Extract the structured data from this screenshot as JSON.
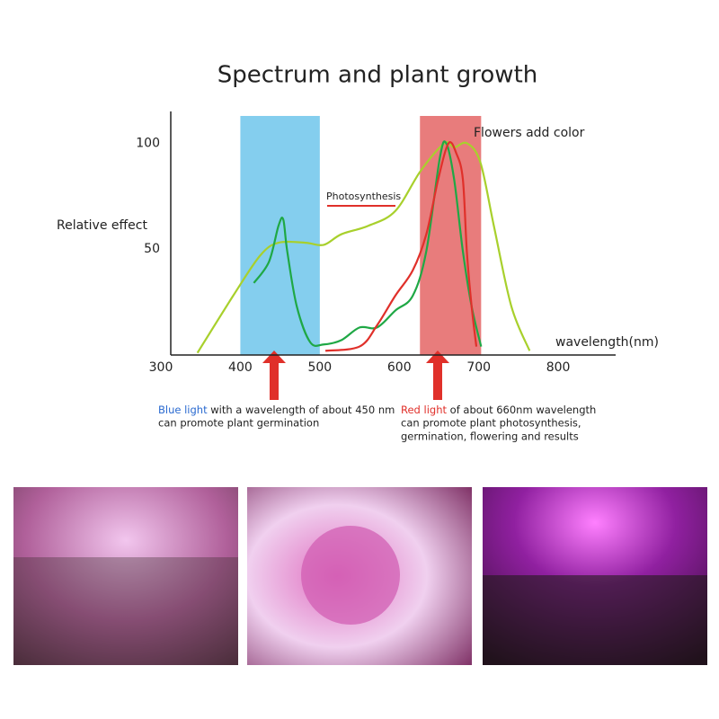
{
  "chart_data": {
    "type": "line",
    "title": "Spectrum and plant growth",
    "y_label": "Relative effect",
    "x_label": "wavelength(nm)",
    "xlim": [
      300,
      870
    ],
    "ylim": [
      0,
      115
    ],
    "xticks": [
      300,
      400,
      500,
      600,
      700,
      800
    ],
    "yticks": [
      50,
      100
    ],
    "bands": [
      {
        "from": 400,
        "to": 500,
        "color": "#5bbde8"
      },
      {
        "from": 626,
        "to": 703,
        "color": "#e05050"
      }
    ],
    "series": [
      {
        "color": "#a8d02c",
        "x": [
          346,
          391,
          425,
          448,
          482,
          505,
          527,
          561,
          595,
          627,
          657,
          669,
          685,
          702,
          719,
          741,
          764
        ],
        "values": [
          1,
          28,
          47,
          53,
          53,
          52,
          57,
          61,
          68,
          87,
          100,
          98,
          100,
          91,
          61,
          23,
          2
        ]
      },
      {
        "color": "#1fa845",
        "x": [
          417,
          436,
          448,
          454,
          459,
          471,
          488,
          505,
          527,
          550,
          572,
          595,
          617,
          634,
          651,
          659,
          669,
          680,
          691,
          703
        ],
        "values": [
          34,
          44,
          61,
          64,
          49,
          23,
          6,
          5,
          7,
          13,
          13,
          21,
          28,
          49,
          93,
          100,
          83,
          49,
          23,
          4
        ]
      },
      {
        "color": "#e0302a",
        "x": [
          507,
          550,
          572,
          595,
          617,
          634,
          649,
          662,
          672,
          680,
          685,
          691,
          697
        ],
        "values": [
          2,
          4,
          14,
          28,
          40,
          57,
          83,
          100,
          95,
          83,
          49,
          23,
          4
        ]
      }
    ],
    "annotations": {
      "photosynthesis": "Photosynthesis",
      "flowers": "Flowers add color",
      "blue_head": "Blue light",
      "blue_line1": " with a wavelength of about 450 nm",
      "blue_line2": "can promote plant germination",
      "red_head": "Red light",
      "red_line1": " of about 660nm wavelength",
      "red_line2": "can promote plant photosynthesis,",
      "red_line3": "germination, flowering and results"
    }
  }
}
